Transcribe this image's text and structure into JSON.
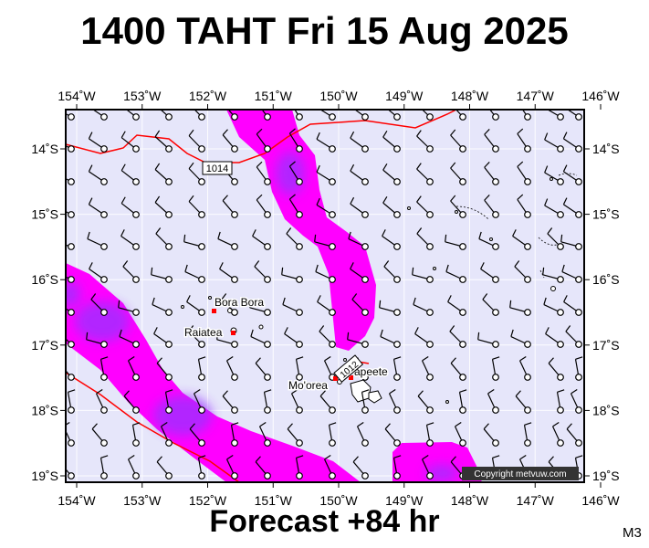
{
  "title": "1400 TAHT Fri 15 Aug 2025",
  "footer": "Forecast +84 hr",
  "model_code": "M3",
  "copyright": "Copyright metvuw.com",
  "colors": {
    "ocean": "#e6e6fa",
    "rain_light": "#ff00ff",
    "rain_heavy": "#9933ff",
    "isobar": "#ff0000",
    "island_label_marker": "#ff0000"
  },
  "map": {
    "lon_range": [
      -154,
      -146
    ],
    "lat_range": [
      -19,
      -13.65
    ],
    "top_lon_labels": [
      "154˚W",
      "153˚W",
      "152˚W",
      "151˚W",
      "150˚W",
      "149˚W",
      "148˚W",
      "147˚W",
      "146˚W"
    ],
    "bottom_lon_labels": [
      "154˚W",
      "153˚W",
      "152˚W",
      "151˚W",
      "150˚W",
      "149˚W",
      "148˚W",
      "147˚W",
      "146˚W"
    ],
    "left_lat_labels": [
      "14˚S",
      "15˚S",
      "16˚S",
      "17˚S",
      "18˚S",
      "19˚S"
    ],
    "right_lat_labels": [
      "14˚S",
      "15˚S",
      "16˚S",
      "17˚S",
      "18˚S",
      "19˚S"
    ],
    "isobars": [
      {
        "label": "1014",
        "label_lon": -152.0,
        "label_lat": -14.3
      },
      {
        "label": "1012",
        "label_lon": -149.8,
        "label_lat": -17.3
      }
    ],
    "places": [
      {
        "name": "Bora Bora",
        "lon": -151.75,
        "lat": -16.5
      },
      {
        "name": "Raiatea",
        "lon": -151.45,
        "lat": -16.8
      },
      {
        "name": "Mo'orea",
        "lon": -149.85,
        "lat": -17.55
      },
      {
        "name": "Papeete",
        "lon": -149.55,
        "lat": -17.53
      }
    ]
  }
}
